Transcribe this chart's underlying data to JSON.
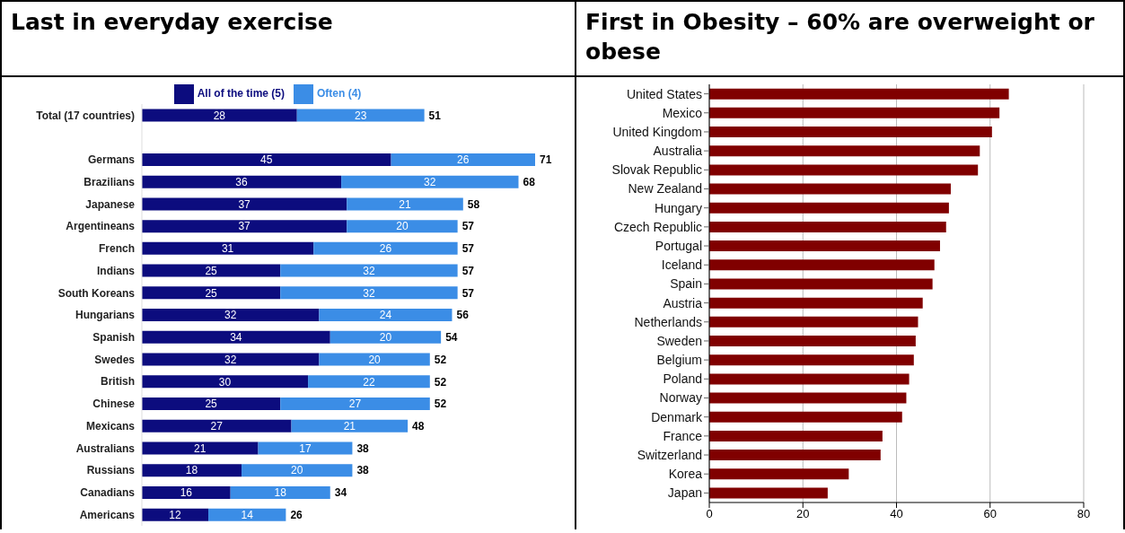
{
  "chart_data": [
    {
      "type": "bar",
      "orientation": "horizontal",
      "stacked": true,
      "title": "Last in everyday exercise",
      "legend": "top",
      "data_labels": true,
      "tick_labels": "y",
      "categories": [
        "Total (17 countries)",
        null,
        "Germans",
        "Brazilians",
        "Japanese",
        "Argentineans",
        "French",
        "Indians",
        "South Koreans",
        "Hungarians",
        "Spanish",
        "Swedes",
        "British",
        "Chinese",
        "Mexicans",
        "Australians",
        "Russians",
        "Canadians",
        "Americans"
      ],
      "series": [
        {
          "name": "All of the time (5)",
          "color": "#0c0c7e",
          "values": [
            28,
            null,
            45,
            36,
            37,
            37,
            31,
            25,
            25,
            32,
            34,
            32,
            30,
            25,
            27,
            21,
            18,
            16,
            12
          ]
        },
        {
          "name": "Often (4)",
          "color": "#3b8de6",
          "values": [
            23,
            null,
            26,
            32,
            21,
            20,
            26,
            32,
            32,
            24,
            20,
            20,
            22,
            27,
            21,
            17,
            20,
            18,
            14
          ]
        }
      ],
      "totals": [
        "51",
        null,
        "71",
        "68",
        "58",
        "57",
        "57",
        "57",
        "57",
        "56",
        "54",
        "52",
        "52",
        "52",
        "48",
        "38",
        "38",
        "34",
        "26"
      ]
    },
    {
      "type": "bar",
      "orientation": "horizontal",
      "title": "First in Obesity – 60% are overweight or obese",
      "grid": "x",
      "categories": [
        "United States",
        "Mexico",
        "United Kingdom",
        "Australia",
        "Slovak Republic",
        "New Zealand",
        "Hungary",
        "Czech Republic",
        "Portugal",
        "Iceland",
        "Spain",
        "Austria",
        "Netherlands",
        "Sweden",
        "Belgium",
        "Poland",
        "Norway",
        "Denmark",
        "France",
        "Switzerland",
        "Korea",
        "Japan"
      ],
      "values": [
        64,
        62,
        60.4,
        57.8,
        57.4,
        51.6,
        51.2,
        50.6,
        49.3,
        48.1,
        47.7,
        45.6,
        44.6,
        44.1,
        43.7,
        42.7,
        42.1,
        41.2,
        37.0,
        36.6,
        29.8,
        25.3
      ],
      "color": "#800000",
      "xlim": [
        0,
        80
      ],
      "xticks": [
        0,
        20,
        40,
        60,
        80
      ]
    }
  ]
}
